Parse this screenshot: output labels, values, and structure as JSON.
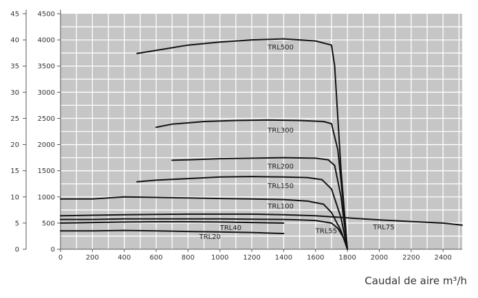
{
  "chart_data": {
    "type": "line",
    "xlabel": "Caudal de aire m³/h",
    "xlim": [
      0,
      2520
    ],
    "x_ticks": [
      "0",
      "200",
      "400",
      "600",
      "800",
      "1000",
      "1200",
      "1400",
      "1600",
      "1800",
      "2000",
      "2200",
      "2400"
    ],
    "y_left_ticks": [
      "0",
      "5",
      "10",
      "15",
      "20",
      "25",
      "30",
      "35",
      "40",
      "45"
    ],
    "y_right_ticks": [
      "0",
      "500",
      "1000",
      "1500",
      "2000",
      "2500",
      "3000",
      "3500",
      "4000",
      "4500"
    ],
    "ylim": [
      0,
      4500
    ],
    "grid": true,
    "colors": {
      "plot_bg": "#c6c6c6",
      "grid": "#ffffff",
      "line": "#111111"
    },
    "series": [
      {
        "name": "TRL500",
        "x": [
          480,
          600,
          800,
          1000,
          1200,
          1400,
          1600,
          1700,
          1720,
          1760,
          1800
        ],
        "y": [
          3740,
          3800,
          3900,
          3960,
          4000,
          4020,
          3980,
          3900,
          3500,
          1500,
          0
        ]
      },
      {
        "name": "TRL300",
        "x": [
          600,
          700,
          900,
          1100,
          1300,
          1500,
          1650,
          1700,
          1740,
          1770,
          1800
        ],
        "y": [
          2330,
          2390,
          2440,
          2460,
          2470,
          2460,
          2440,
          2400,
          1900,
          1000,
          0
        ]
      },
      {
        "name": "TRL200",
        "x": [
          700,
          800,
          1000,
          1200,
          1400,
          1600,
          1680,
          1720,
          1760,
          1800
        ],
        "y": [
          1700,
          1710,
          1730,
          1740,
          1750,
          1740,
          1710,
          1600,
          1000,
          0
        ]
      },
      {
        "name": "TRL150",
        "x": [
          480,
          600,
          800,
          1000,
          1200,
          1400,
          1550,
          1640,
          1700,
          1760,
          1800
        ],
        "y": [
          1290,
          1320,
          1350,
          1380,
          1390,
          1380,
          1370,
          1330,
          1150,
          600,
          0
        ]
      },
      {
        "name": "TRL100",
        "x": [
          0,
          200,
          400,
          600,
          800,
          1000,
          1200,
          1400,
          1550,
          1650,
          1700,
          1760,
          1800
        ],
        "y": [
          960,
          960,
          1000,
          990,
          980,
          970,
          960,
          950,
          920,
          860,
          700,
          350,
          0
        ]
      },
      {
        "name": "TRL75",
        "x": [
          0,
          200,
          400,
          600,
          800,
          1000,
          1200,
          1400,
          1600,
          1800,
          2000,
          2200,
          2400,
          2520
        ],
        "y": [
          640,
          650,
          660,
          665,
          670,
          670,
          670,
          660,
          640,
          600,
          560,
          530,
          500,
          460
        ]
      },
      {
        "name": "TRL55",
        "x": [
          0,
          200,
          400,
          600,
          800,
          1000,
          1200,
          1400,
          1500,
          1600,
          1700,
          1740,
          1780,
          1800
        ],
        "y": [
          570,
          570,
          580,
          580,
          580,
          580,
          575,
          570,
          560,
          550,
          500,
          400,
          200,
          0
        ]
      },
      {
        "name": "TRL40",
        "x": [
          0,
          200,
          400,
          600,
          800,
          1000,
          1200,
          1400
        ],
        "y": [
          500,
          510,
          520,
          525,
          525,
          520,
          510,
          500
        ]
      },
      {
        "name": "TRL20",
        "x": [
          0,
          200,
          400,
          600,
          800,
          1000,
          1200,
          1400
        ],
        "y": [
          350,
          350,
          360,
          350,
          340,
          330,
          320,
          300
        ]
      }
    ],
    "labels": [
      {
        "text": "TRL500",
        "x": 1300,
        "y": 3820
      },
      {
        "text": "TRL300",
        "x": 1300,
        "y": 2230
      },
      {
        "text": "TRL200",
        "x": 1300,
        "y": 1540
      },
      {
        "text": "TRL150",
        "x": 1300,
        "y": 1170
      },
      {
        "text": "TRL100",
        "x": 1300,
        "y": 780
      },
      {
        "text": "TRL75",
        "x": 1960,
        "y": 380
      },
      {
        "text": "TRL55",
        "x": 1600,
        "y": 310
      },
      {
        "text": "TRL40",
        "x": 1000,
        "y": 370
      },
      {
        "text": "TRL20",
        "x": 870,
        "y": 200
      }
    ]
  }
}
